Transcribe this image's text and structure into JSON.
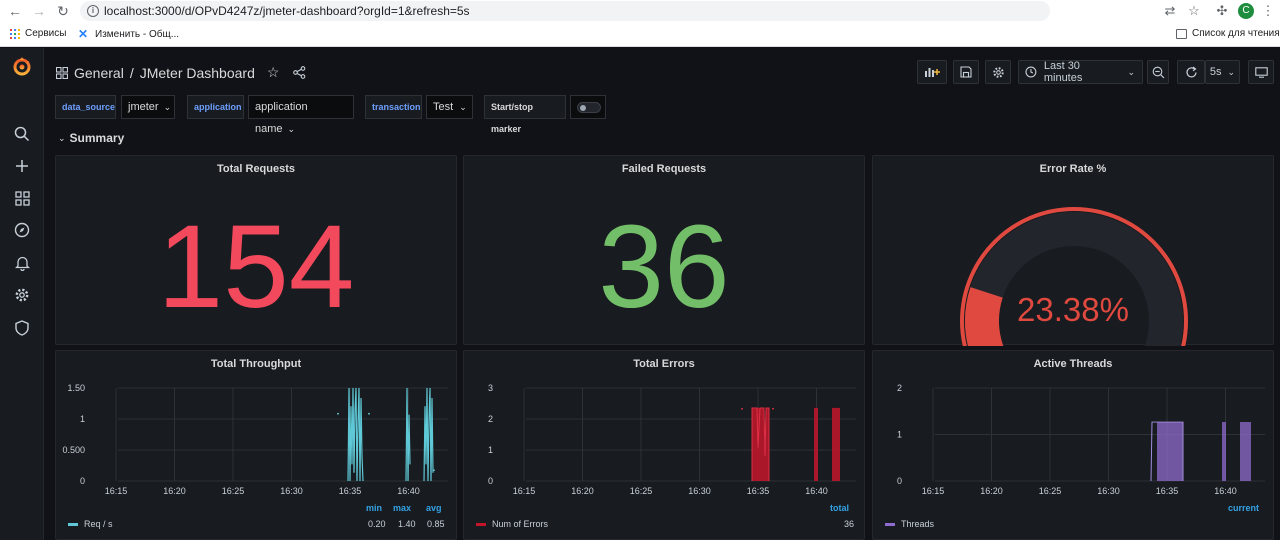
{
  "browser": {
    "url": "localhost:3000/d/OPvD4247z/jmeter-dashboard?orgId=1&refresh=5s",
    "profile_initial": "C",
    "bookmarks": [
      "Сервисы",
      "Изменить - Общ..."
    ],
    "reading_list": "Список для чтения"
  },
  "breadcrumb": {
    "folder": "General",
    "separator": "/",
    "dashboard": "JMeter Dashboard"
  },
  "toolbar": {
    "time_range": "Last 30 minutes",
    "refresh": "5s"
  },
  "variables": [
    {
      "label": "data_source",
      "value": "jmeter"
    },
    {
      "label": "application",
      "value": "application name"
    },
    {
      "label": "transaction",
      "value": "Test"
    },
    {
      "label": "Start/stop marker",
      "value": ""
    }
  ],
  "row": {
    "title": "Summary"
  },
  "panels": {
    "total_requests": {
      "title": "Total Requests",
      "value": "154",
      "color": "#f2495c"
    },
    "failed_requests": {
      "title": "Failed Requests",
      "value": "36",
      "color": "#73bf69"
    },
    "error_rate": {
      "title": "Error Rate %",
      "value": "23.38%",
      "fraction": 0.2338,
      "color": "#e0493f"
    },
    "throughput": {
      "title": "Total Throughput",
      "legend_headers": [
        "min",
        "max",
        "avg"
      ],
      "series": "Req / s",
      "stats": [
        "0.20",
        "1.40",
        "0.85"
      ],
      "color": "#5ec8d6"
    },
    "errors": {
      "title": "Total Errors",
      "legend_headers": [
        "total"
      ],
      "series": "Num of Errors",
      "stats": [
        "36"
      ],
      "color": "#c4162a"
    },
    "threads": {
      "title": "Active Threads",
      "legend_headers": [
        "current"
      ],
      "series": "Threads",
      "stats": [],
      "color": "#8f6ccf"
    }
  },
  "chart_data": [
    {
      "type": "line",
      "title": "Total Throughput",
      "x_ticks": [
        "16:15",
        "16:20",
        "16:25",
        "16:30",
        "16:35",
        "16:40"
      ],
      "y_ticks": [
        "0",
        "0.500",
        "1",
        "1.50"
      ],
      "ylim": [
        0,
        1.5
      ],
      "series": [
        {
          "name": "Req / s"
        }
      ]
    },
    {
      "type": "bar",
      "title": "Total Errors",
      "x_ticks": [
        "16:15",
        "16:20",
        "16:25",
        "16:30",
        "16:35",
        "16:40"
      ],
      "y_ticks": [
        "0",
        "1",
        "2",
        "3"
      ],
      "ylim": [
        0,
        3
      ],
      "series": [
        {
          "name": "Num of Errors"
        }
      ]
    },
    {
      "type": "area",
      "title": "Active Threads",
      "x_ticks": [
        "16:15",
        "16:20",
        "16:25",
        "16:30",
        "16:35",
        "16:40"
      ],
      "y_ticks": [
        "0",
        "1",
        "2"
      ],
      "ylim": [
        0,
        2
      ],
      "series": [
        {
          "name": "Threads"
        }
      ]
    }
  ]
}
